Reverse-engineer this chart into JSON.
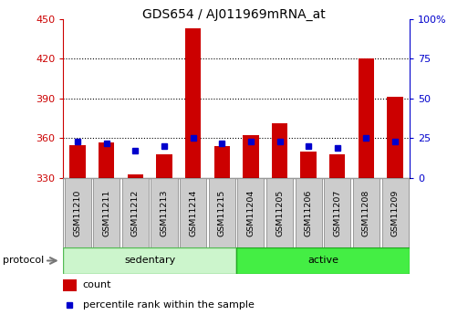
{
  "title": "GDS654 / AJ011969mRNA_at",
  "samples": [
    "GSM11210",
    "GSM11211",
    "GSM11212",
    "GSM11213",
    "GSM11214",
    "GSM11215",
    "GSM11204",
    "GSM11205",
    "GSM11206",
    "GSM11207",
    "GSM11208",
    "GSM11209"
  ],
  "count_values": [
    355,
    357,
    333,
    348,
    443,
    354,
    362,
    371,
    350,
    348,
    420,
    391
  ],
  "percentile_values": [
    23,
    22,
    17,
    20,
    25,
    22,
    23,
    23,
    20,
    19,
    25,
    23
  ],
  "protocol_label": "protocol",
  "ylim_left": [
    330,
    450
  ],
  "yticks_left": [
    330,
    360,
    390,
    420,
    450
  ],
  "ylim_right": [
    0,
    100
  ],
  "yticks_right": [
    0,
    25,
    50,
    75,
    100
  ],
  "ytick_labels_right": [
    "0",
    "25",
    "50",
    "75",
    "100%"
  ],
  "count_color": "#cc0000",
  "percentile_color": "#0000cc",
  "baseline": 330,
  "legend_count": "count",
  "legend_percentile": "percentile rank within the sample",
  "sedentary_color": "#ccf5cc",
  "sedentary_border": "#55bb55",
  "active_color": "#44ee44",
  "active_border": "#22aa22",
  "sample_box_color": "#cccccc",
  "sample_box_border": "#999999",
  "n_sedentary": 6,
  "n_active": 6,
  "grid_yticks": [
    360,
    390,
    420
  ]
}
